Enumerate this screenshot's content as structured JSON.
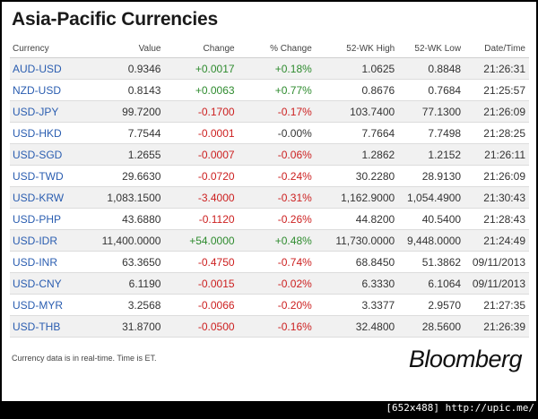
{
  "title": "Asia-Pacific Currencies",
  "columns": [
    "Currency",
    "Value",
    "Change",
    "% Change",
    "52-WK High",
    "52-WK Low",
    "Date/Time"
  ],
  "rows": [
    {
      "currency": "AUD-USD",
      "value": "0.9346",
      "change": "+0.0017",
      "pct": "+0.18%",
      "high": "1.0625",
      "low": "0.8848",
      "time": "21:26:31",
      "dir": "pos"
    },
    {
      "currency": "NZD-USD",
      "value": "0.8143",
      "change": "+0.0063",
      "pct": "+0.77%",
      "high": "0.8676",
      "low": "0.7684",
      "time": "21:25:57",
      "dir": "pos"
    },
    {
      "currency": "USD-JPY",
      "value": "99.7200",
      "change": "-0.1700",
      "pct": "-0.17%",
      "high": "103.7400",
      "low": "77.1300",
      "time": "21:26:09",
      "dir": "neg"
    },
    {
      "currency": "USD-HKD",
      "value": "7.7544",
      "change": "-0.0001",
      "pct": "-0.00%",
      "high": "7.7664",
      "low": "7.7498",
      "time": "21:28:25",
      "dir": "neg",
      "pct_dir": "flat"
    },
    {
      "currency": "USD-SGD",
      "value": "1.2655",
      "change": "-0.0007",
      "pct": "-0.06%",
      "high": "1.2862",
      "low": "1.2152",
      "time": "21:26:11",
      "dir": "neg"
    },
    {
      "currency": "USD-TWD",
      "value": "29.6630",
      "change": "-0.0720",
      "pct": "-0.24%",
      "high": "30.2280",
      "low": "28.9130",
      "time": "21:26:09",
      "dir": "neg"
    },
    {
      "currency": "USD-KRW",
      "value": "1,083.1500",
      "change": "-3.4000",
      "pct": "-0.31%",
      "high": "1,162.9000",
      "low": "1,054.4900",
      "time": "21:30:43",
      "dir": "neg"
    },
    {
      "currency": "USD-PHP",
      "value": "43.6880",
      "change": "-0.1120",
      "pct": "-0.26%",
      "high": "44.8200",
      "low": "40.5400",
      "time": "21:28:43",
      "dir": "neg"
    },
    {
      "currency": "USD-IDR",
      "value": "11,400.0000",
      "change": "+54.0000",
      "pct": "+0.48%",
      "high": "11,730.0000",
      "low": "9,448.0000",
      "time": "21:24:49",
      "dir": "pos"
    },
    {
      "currency": "USD-INR",
      "value": "63.3650",
      "change": "-0.4750",
      "pct": "-0.74%",
      "high": "68.8450",
      "low": "51.3862",
      "time": "09/11/2013",
      "dir": "neg"
    },
    {
      "currency": "USD-CNY",
      "value": "6.1190",
      "change": "-0.0015",
      "pct": "-0.02%",
      "high": "6.3330",
      "low": "6.1064",
      "time": "09/11/2013",
      "dir": "neg"
    },
    {
      "currency": "USD-MYR",
      "value": "3.2568",
      "change": "-0.0066",
      "pct": "-0.20%",
      "high": "3.3377",
      "low": "2.9570",
      "time": "21:27:35",
      "dir": "neg"
    },
    {
      "currency": "USD-THB",
      "value": "31.8700",
      "change": "-0.0500",
      "pct": "-0.16%",
      "high": "32.4800",
      "low": "28.5600",
      "time": "21:26:39",
      "dir": "neg"
    }
  ],
  "footnote": "Currency data is in real-time. Time is ET.",
  "brand": "Bloomberg",
  "watermark": "[652x488] http://upic.me/",
  "colors": {
    "positive": "#2e8b2e",
    "negative": "#cc1f1f",
    "link": "#2a5db0",
    "stripe": "#f1f1f1"
  }
}
